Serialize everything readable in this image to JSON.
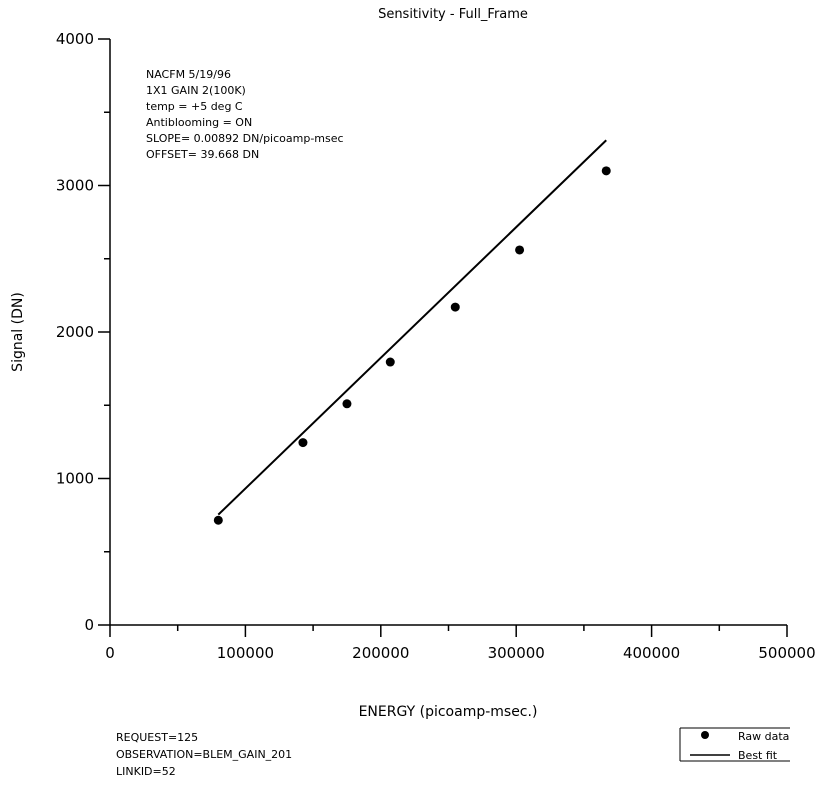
{
  "chart_data": {
    "type": "scatter",
    "title": "Sensitivity - Full_Frame",
    "xlabel": "ENERGY (picoamp-msec.)",
    "ylabel": "Signal (DN)",
    "xlim": [
      0,
      500000
    ],
    "ylim": [
      0,
      4000
    ],
    "x_ticks": [
      0,
      100000,
      200000,
      300000,
      400000,
      500000
    ],
    "y_ticks": [
      0,
      1000,
      2000,
      3000,
      4000
    ],
    "x_tick_labels": [
      "0",
      "100000",
      "200000",
      "300000",
      "400000",
      "500000"
    ],
    "y_tick_labels": [
      "0",
      "1000",
      "2000",
      "3000",
      "4000"
    ],
    "grid": false,
    "legend_position": "bottom-right",
    "series": [
      {
        "name": "Raw data",
        "style": "points",
        "x": [
          80000,
          142500,
          175000,
          207000,
          255000,
          302500,
          366500
        ],
        "y": [
          715,
          1245,
          1510,
          1795,
          2170,
          2560,
          3100
        ]
      },
      {
        "name": "Best fit",
        "style": "line",
        "x": [
          80000,
          366500
        ],
        "y": [
          753.3,
          3309.0
        ]
      }
    ],
    "annotations": [
      "NACFM   5/19/96",
      "1X1 GAIN 2(100K)",
      "temp = +5 deg C",
      "Antiblooming = ON",
      "SLOPE= 0.00892 DN/picoamp-msec",
      "OFFSET= 39.668 DN"
    ]
  },
  "footer": {
    "lines": [
      "REQUEST=125",
      "OBSERVATION=BLEM_GAIN_201",
      "LINKID=52"
    ]
  }
}
